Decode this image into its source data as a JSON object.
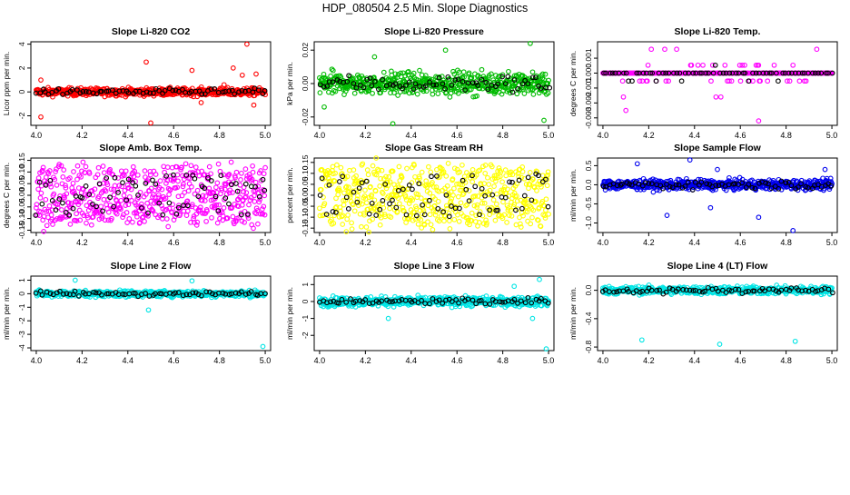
{
  "title": "HDP_080504  2.5 Min. Slope Diagnostics",
  "chart_data": [
    {
      "type": "scatter",
      "title": "Slope Li-820 CO2",
      "ylabel": "Licor ppm per min.",
      "color": "#ff0000",
      "xlim": [
        4.0,
        5.0
      ],
      "ylim": [
        -2.8,
        4.2
      ],
      "xticks": [
        "4.0",
        "4.2",
        "4.4",
        "4.6",
        "4.8",
        "5.0"
      ],
      "yticks": [
        {
          "v": -2,
          "label": "-2"
        },
        {
          "v": 0,
          "label": "0"
        },
        {
          "v": 2,
          "label": "2"
        },
        {
          "v": 4,
          "label": "4"
        }
      ],
      "spread": 0.35,
      "outliers": [
        [
          4.02,
          1.0
        ],
        [
          4.02,
          -2.1
        ],
        [
          4.48,
          2.5
        ],
        [
          4.5,
          -2.6
        ],
        [
          4.68,
          1.8
        ],
        [
          4.72,
          -0.9
        ],
        [
          4.82,
          0.6
        ],
        [
          4.86,
          2.0
        ],
        [
          4.9,
          1.4
        ],
        [
          4.92,
          4.0
        ],
        [
          4.95,
          -1.1
        ],
        [
          4.96,
          1.5
        ]
      ],
      "black_series": "series 1",
      "colored_series": "series 2"
    },
    {
      "type": "scatter",
      "title": "Slope Li-820 Pressure",
      "ylabel": "kPa per min.",
      "color": "#00bb00",
      "xlim": [
        4.0,
        5.0
      ],
      "ylim": [
        -0.025,
        0.025
      ],
      "xticks": [
        "4.0",
        "4.2",
        "4.4",
        "4.6",
        "4.8",
        "5.0"
      ],
      "yticks": [
        {
          "v": -0.02,
          "label": "-0.02"
        },
        {
          "v": 0.0,
          "label": "0.00"
        },
        {
          "v": 0.02,
          "label": "0.02"
        }
      ],
      "spread": 0.007,
      "outliers": [
        [
          4.32,
          -0.024
        ],
        [
          4.55,
          0.02
        ],
        [
          4.92,
          0.024
        ],
        [
          4.98,
          -0.022
        ],
        [
          4.02,
          -0.014
        ],
        [
          4.24,
          0.016
        ]
      ],
      "black_series": "series 1",
      "colored_series": "series 2"
    },
    {
      "type": "scatter",
      "title": "Slope Li-820 Temp.",
      "ylabel": "degrees C per min.",
      "color": "#ff00ff",
      "xlim": [
        4.0,
        5.0
      ],
      "ylim": [
        -0.0035,
        0.0021
      ],
      "xticks": [
        "4.0",
        "4.2",
        "4.4",
        "4.6",
        "4.8",
        "5.0"
      ],
      "yticks": [
        {
          "v": -0.003,
          "label": "-0.003"
        },
        {
          "v": -0.002,
          "label": "-0.002"
        },
        {
          "v": -0.001,
          "label": "-0.001"
        },
        {
          "v": 0.0,
          "label": "0.000"
        },
        {
          "v": 0.001,
          "label": "0.001"
        }
      ],
      "discrete_levels": [
        -0.0016,
        -0.00053,
        0.0,
        0.00053,
        0.0016
      ],
      "outliers": [
        [
          4.27,
          0.0016
        ],
        [
          4.68,
          -0.0032
        ],
        [
          4.1,
          -0.0025
        ]
      ],
      "black_series": "series 1",
      "colored_series": "series 2"
    },
    {
      "type": "scatter",
      "title": "Slope Amb. Box Temp.",
      "ylabel": "degrees C per min.",
      "color": "#ff00ff",
      "xlim": [
        4.0,
        5.0
      ],
      "ylim": [
        -0.16,
        0.16
      ],
      "xticks": [
        "4.0",
        "4.2",
        "4.4",
        "4.6",
        "4.8",
        "5.0"
      ],
      "yticks": [
        {
          "v": -0.15,
          "label": "-0.15"
        },
        {
          "v": -0.1,
          "label": "-0.10"
        },
        {
          "v": -0.05,
          "label": "-0.05"
        },
        {
          "v": 0.0,
          "label": "0.00"
        },
        {
          "v": 0.05,
          "label": "0.05"
        },
        {
          "v": 0.1,
          "label": "0.10"
        },
        {
          "v": 0.15,
          "label": "0.15"
        }
      ],
      "spread": 0.08,
      "uniform": true,
      "outliers": [],
      "black_series": "series 1",
      "colored_series": "series 2"
    },
    {
      "type": "scatter",
      "title": "Slope Gas Stream RH",
      "ylabel": "percent per min.",
      "color": "#ffff00",
      "xlim": [
        4.0,
        5.0
      ],
      "ylim": [
        -0.17,
        0.17
      ],
      "xticks": [
        "4.0",
        "4.2",
        "4.4",
        "4.6",
        "4.8",
        "5.0"
      ],
      "yticks": [
        {
          "v": -0.15,
          "label": "-0.15"
        },
        {
          "v": -0.1,
          "label": "-0.10"
        },
        {
          "v": -0.05,
          "label": "-0.05"
        },
        {
          "v": 0.0,
          "label": "0.00"
        },
        {
          "v": 0.05,
          "label": "0.05"
        },
        {
          "v": 0.1,
          "label": "0.10"
        },
        {
          "v": 0.15,
          "label": "0.15"
        }
      ],
      "spread": 0.09,
      "uniform": true,
      "outliers": [],
      "black_series": "series 1",
      "colored_series": "series 2"
    },
    {
      "type": "scatter",
      "title": "Slope Sample Flow",
      "ylabel": "ml/min per min.",
      "color": "#0000ee",
      "xlim": [
        4.0,
        5.0
      ],
      "ylim": [
        -1.25,
        0.7
      ],
      "xticks": [
        "4.0",
        "4.2",
        "4.4",
        "4.6",
        "4.8",
        "5.0"
      ],
      "yticks": [
        {
          "v": -1.0,
          "label": "-1.0"
        },
        {
          "v": -0.5,
          "label": "-0.5"
        },
        {
          "v": 0.0,
          "label": "0.0"
        },
        {
          "v": 0.5,
          "label": "0.5"
        }
      ],
      "spread": 0.14,
      "outliers": [
        [
          4.38,
          0.65
        ],
        [
          4.28,
          -0.8
        ],
        [
          4.47,
          -0.6
        ],
        [
          4.83,
          -1.2
        ],
        [
          4.68,
          -0.85
        ],
        [
          4.97,
          0.4
        ],
        [
          4.15,
          0.55
        ],
        [
          4.5,
          0.4
        ]
      ],
      "black_series": "series 1",
      "colored_series": "series 2"
    },
    {
      "type": "scatter",
      "title": "Slope Line 2 Flow",
      "ylabel": "ml/min per min.",
      "color": "#00e5e5",
      "xlim": [
        4.0,
        5.0
      ],
      "ylim": [
        -4.2,
        1.3
      ],
      "xticks": [
        "4.0",
        "4.2",
        "4.4",
        "4.6",
        "4.8",
        "5.0"
      ],
      "yticks": [
        {
          "v": -4,
          "label": "-4"
        },
        {
          "v": -3,
          "label": "-3"
        },
        {
          "v": -2,
          "label": "-2"
        },
        {
          "v": -1,
          "label": "-1"
        },
        {
          "v": 0,
          "label": "0"
        },
        {
          "v": 1,
          "label": "1"
        }
      ],
      "spread": 0.25,
      "outliers": [
        [
          4.99,
          -3.9
        ],
        [
          4.49,
          -1.2
        ],
        [
          4.17,
          1.0
        ],
        [
          4.68,
          0.95
        ]
      ],
      "black_series": "series 1",
      "colored_series": "series 2"
    },
    {
      "type": "scatter",
      "title": "Slope Line 3 Flow",
      "ylabel": "ml/min per min.",
      "color": "#00e5e5",
      "xlim": [
        4.0,
        5.0
      ],
      "ylim": [
        -2.9,
        1.5
      ],
      "xticks": [
        "4.0",
        "4.2",
        "4.4",
        "4.6",
        "4.8",
        "5.0"
      ],
      "yticks": [
        {
          "v": -2,
          "label": "-2"
        },
        {
          "v": -1,
          "label": "-1"
        },
        {
          "v": 0,
          "label": "0"
        },
        {
          "v": 1,
          "label": "1"
        }
      ],
      "spread": 0.3,
      "outliers": [
        [
          4.99,
          -2.8
        ],
        [
          4.96,
          1.3
        ],
        [
          4.93,
          -1.0
        ],
        [
          4.3,
          -1.0
        ],
        [
          4.85,
          0.9
        ]
      ],
      "black_series": "series 1",
      "colored_series": "series 2"
    },
    {
      "type": "scatter",
      "title": "Slope Line 4 (LT) Flow",
      "ylabel": "ml/min per min.",
      "color": "#00e5e5",
      "xlim": [
        4.0,
        5.0
      ],
      "ylim": [
        -0.85,
        0.2
      ],
      "xticks": [
        "4.0",
        "4.2",
        "4.4",
        "4.6",
        "4.8",
        "5.0"
      ],
      "yticks": [
        {
          "v": -0.8,
          "label": "-0.8"
        },
        {
          "v": -0.4,
          "label": "-0.4"
        },
        {
          "v": 0.0,
          "label": "0.0"
        }
      ],
      "spread": 0.06,
      "outliers": [
        [
          4.17,
          -0.7
        ],
        [
          4.51,
          -0.76
        ],
        [
          4.84,
          -0.72
        ]
      ],
      "black_series": "series 1",
      "colored_series": "series 2"
    }
  ]
}
